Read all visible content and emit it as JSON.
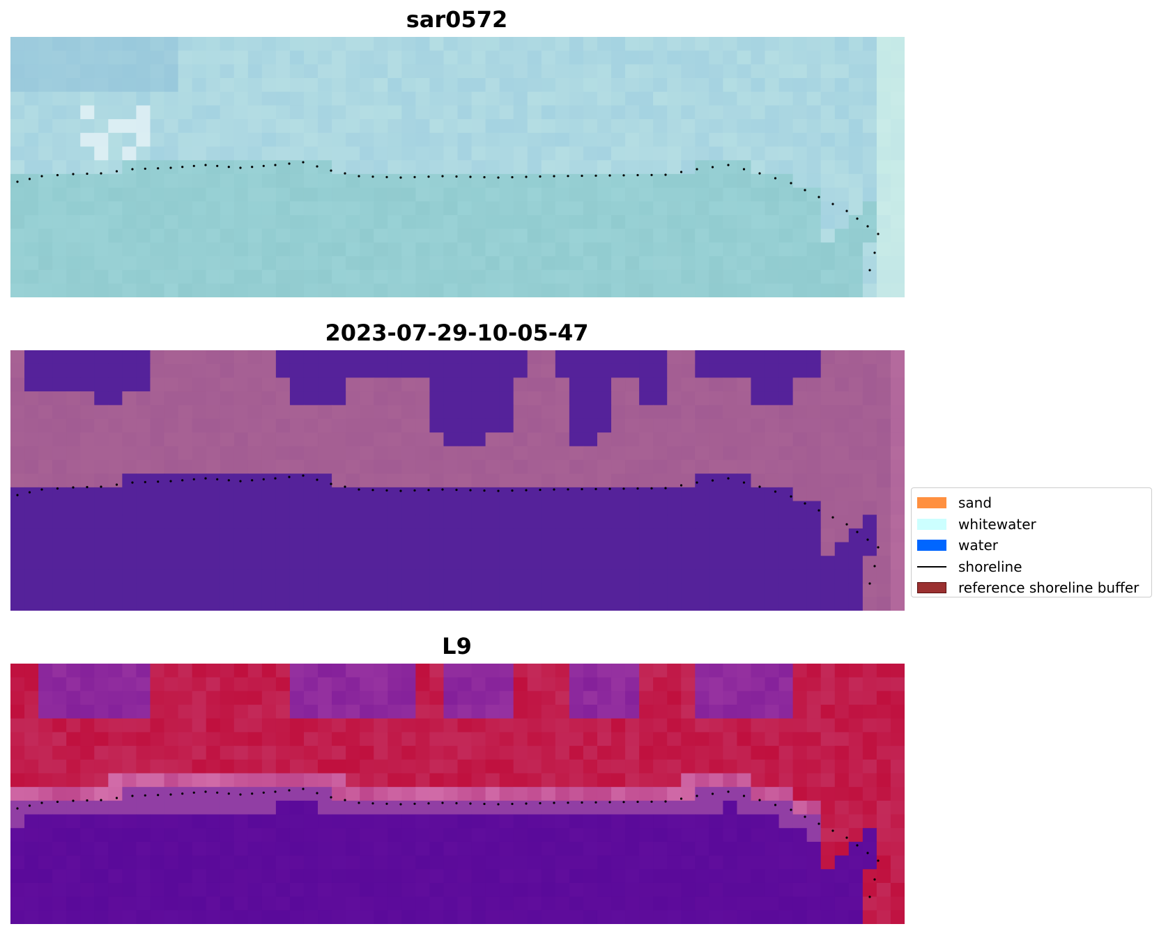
{
  "panels": [
    {
      "title": "sar0572"
    },
    {
      "title": "2023-07-29-10-05-47"
    },
    {
      "title": "L9"
    }
  ],
  "legend": {
    "items": [
      {
        "label": "sand",
        "color": "#ff9040",
        "kind": "patch"
      },
      {
        "label": "whitewater",
        "color": "#ccffff",
        "kind": "patch"
      },
      {
        "label": "water",
        "color": "#0066ff",
        "kind": "patch"
      },
      {
        "label": "shoreline",
        "color": "#000000",
        "kind": "line"
      },
      {
        "label": "reference shoreline buffer",
        "color": "#9b3030",
        "kind": "patch",
        "edge": "#5a1010"
      }
    ]
  },
  "colors": {
    "rgb_sea": "#91cbcf",
    "rgb_land": "#b4dde3",
    "classified_water": "#55229a",
    "classified_land": "#a25c93",
    "mndwi_water": "#5a0a9a",
    "mndwi_land": "#c0103e"
  }
}
